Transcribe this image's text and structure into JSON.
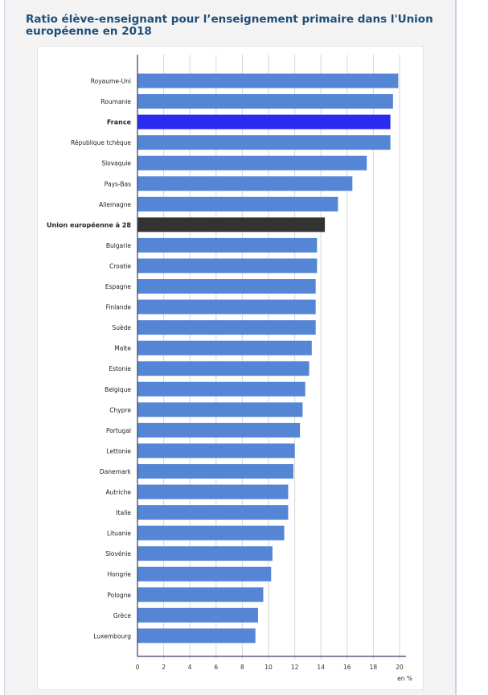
{
  "title": "Ratio élève-enseignant pour l’enseignement primaire dans l'Union européenne en 2018",
  "chart_data": {
    "type": "bar",
    "orientation": "horizontal",
    "title": "Ratio élève-enseignant pour l’enseignement primaire dans l'Union européenne en 2018",
    "xlabel": "en %",
    "ylabel": "",
    "xlim": [
      0,
      20
    ],
    "xticks": [
      "0",
      "2",
      "4",
      "6",
      "8",
      "10",
      "12",
      "14",
      "16",
      "18",
      "20"
    ],
    "grid": true,
    "categories": [
      "Royaume-Uni",
      "Roumanie",
      "France",
      "République tchèque",
      "Slovaquie",
      "Pays-Bas",
      "Allemagne",
      "Union européenne à 28",
      "Bulgarie",
      "Croatie",
      "Espagne",
      "Finlande",
      "Suède",
      "Malte",
      "Estonie",
      "Belgique",
      "Chypre",
      "Portugal",
      "Lettonie",
      "Danemark",
      "Autriche",
      "Italie",
      "Lituanie",
      "Slovénie",
      "Hongrie",
      "Pologne",
      "Grèce",
      "Luxembourg"
    ],
    "values": [
      19.9,
      19.5,
      19.3,
      19.3,
      17.5,
      16.4,
      15.3,
      14.3,
      13.7,
      13.7,
      13.6,
      13.6,
      13.6,
      13.3,
      13.1,
      12.8,
      12.6,
      12.4,
      12.0,
      11.9,
      11.5,
      11.5,
      11.2,
      10.3,
      10.2,
      9.6,
      9.2,
      9.0
    ],
    "highlight": {
      "France": "#2a2af0",
      "Union européenne à 28": "#333333"
    },
    "colors": {
      "default": "#5585d5",
      "axis": "#3b3a6e",
      "grid": "#d6d6d6"
    }
  }
}
